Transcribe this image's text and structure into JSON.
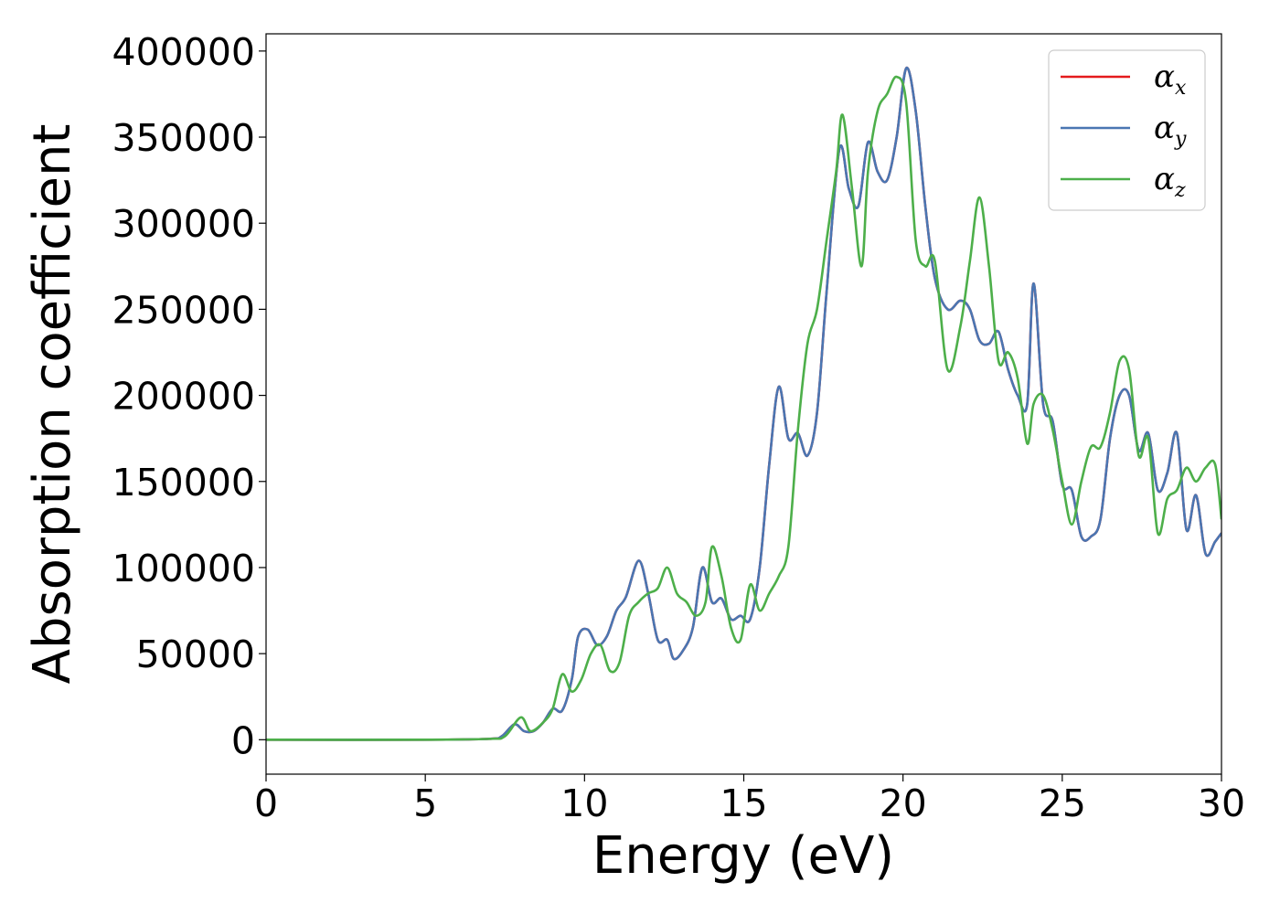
{
  "chart_data": {
    "type": "line",
    "xlabel": "Energy (eV)",
    "ylabel": "Absorption coefficient",
    "xlim": [
      0,
      30
    ],
    "ylim": [
      -20000,
      410000
    ],
    "xticks": [
      0,
      5,
      10,
      15,
      20,
      25,
      30
    ],
    "yticks": [
      0,
      50000,
      100000,
      150000,
      200000,
      250000,
      300000,
      350000,
      400000
    ],
    "grid": false,
    "legend_position": "top-right",
    "series": [
      {
        "name": "αx",
        "label_main": "α",
        "label_sub": "x",
        "color": "#e41a1c",
        "x": [
          0,
          5,
          7.0,
          7.4,
          7.8,
          8.1,
          8.4,
          8.7,
          9.0,
          9.3,
          9.6,
          9.8,
          10.1,
          10.4,
          10.7,
          11.0,
          11.3,
          11.7,
          12.0,
          12.3,
          12.6,
          12.8,
          13.1,
          13.4,
          13.7,
          14.0,
          14.3,
          14.6,
          14.9,
          15.2,
          15.5,
          15.8,
          16.1,
          16.4,
          16.7,
          17.0,
          17.3,
          17.6,
          18.0,
          18.3,
          18.6,
          18.9,
          19.2,
          19.5,
          19.8,
          20.1,
          20.4,
          20.7,
          21.0,
          21.4,
          21.8,
          22.1,
          22.4,
          22.7,
          23.0,
          23.3,
          23.6,
          23.9,
          24.1,
          24.4,
          24.7,
          25.0,
          25.3,
          25.6,
          25.9,
          26.2,
          26.5,
          26.8,
          27.1,
          27.4,
          27.7,
          28.0,
          28.3,
          28.6,
          28.9,
          29.2,
          29.5,
          29.8,
          30.0
        ],
        "y": [
          0,
          0,
          500,
          2000,
          9000,
          5000,
          5000,
          10000,
          18000,
          17000,
          35000,
          60000,
          64000,
          55000,
          60000,
          75000,
          83000,
          104000,
          85000,
          58000,
          58000,
          47000,
          52000,
          65000,
          100000,
          80000,
          82000,
          70000,
          72000,
          70000,
          100000,
          160000,
          205000,
          175000,
          178000,
          165000,
          190000,
          260000,
          343000,
          320000,
          310000,
          347000,
          330000,
          325000,
          350000,
          390000,
          365000,
          310000,
          268000,
          250000,
          255000,
          250000,
          232000,
          230000,
          237000,
          215000,
          200000,
          195000,
          265000,
          195000,
          185000,
          148000,
          145000,
          118000,
          118000,
          128000,
          175000,
          200000,
          200000,
          168000,
          178000,
          145000,
          155000,
          178000,
          122000,
          142000,
          108000,
          115000,
          120000
        ]
      },
      {
        "name": "αy",
        "label_main": "α",
        "label_sub": "y",
        "color": "#4a76b2",
        "x": [
          0,
          5,
          7.0,
          7.4,
          7.8,
          8.1,
          8.4,
          8.7,
          9.0,
          9.3,
          9.6,
          9.8,
          10.1,
          10.4,
          10.7,
          11.0,
          11.3,
          11.7,
          12.0,
          12.3,
          12.6,
          12.8,
          13.1,
          13.4,
          13.7,
          14.0,
          14.3,
          14.6,
          14.9,
          15.2,
          15.5,
          15.8,
          16.1,
          16.4,
          16.7,
          17.0,
          17.3,
          17.6,
          18.0,
          18.3,
          18.6,
          18.9,
          19.2,
          19.5,
          19.8,
          20.1,
          20.4,
          20.7,
          21.0,
          21.4,
          21.8,
          22.1,
          22.4,
          22.7,
          23.0,
          23.3,
          23.6,
          23.9,
          24.1,
          24.4,
          24.7,
          25.0,
          25.3,
          25.6,
          25.9,
          26.2,
          26.5,
          26.8,
          27.1,
          27.4,
          27.7,
          28.0,
          28.3,
          28.6,
          28.9,
          29.2,
          29.5,
          29.8,
          30.0
        ],
        "y": [
          0,
          0,
          500,
          2000,
          9000,
          5000,
          5000,
          10000,
          18000,
          17000,
          35000,
          60000,
          64000,
          55000,
          60000,
          75000,
          83000,
          104000,
          85000,
          58000,
          58000,
          47000,
          52000,
          65000,
          100000,
          80000,
          82000,
          70000,
          72000,
          70000,
          100000,
          160000,
          205000,
          175000,
          178000,
          165000,
          190000,
          260000,
          343000,
          320000,
          310000,
          347000,
          330000,
          325000,
          350000,
          390000,
          365000,
          310000,
          268000,
          250000,
          255000,
          250000,
          232000,
          230000,
          237000,
          215000,
          200000,
          195000,
          265000,
          195000,
          185000,
          148000,
          145000,
          118000,
          118000,
          128000,
          175000,
          200000,
          200000,
          168000,
          178000,
          145000,
          155000,
          178000,
          122000,
          142000,
          108000,
          115000,
          120000
        ]
      },
      {
        "name": "αz",
        "label_main": "α",
        "label_sub": "z",
        "color": "#4daf4a",
        "x": [
          0,
          5,
          7.0,
          7.5,
          8.0,
          8.3,
          8.7,
          9.0,
          9.3,
          9.6,
          9.9,
          10.2,
          10.5,
          10.8,
          11.1,
          11.4,
          11.7,
          12.0,
          12.3,
          12.6,
          12.9,
          13.2,
          13.5,
          13.8,
          14.0,
          14.3,
          14.6,
          14.9,
          15.2,
          15.5,
          15.8,
          16.1,
          16.4,
          16.7,
          17.0,
          17.3,
          17.6,
          17.9,
          18.1,
          18.4,
          18.7,
          18.9,
          19.2,
          19.5,
          19.8,
          20.1,
          20.4,
          20.7,
          21.0,
          21.4,
          21.8,
          22.1,
          22.4,
          22.7,
          23.0,
          23.3,
          23.6,
          23.9,
          24.1,
          24.4,
          24.7,
          25.0,
          25.3,
          25.6,
          25.9,
          26.2,
          26.5,
          26.8,
          27.1,
          27.4,
          27.7,
          28.0,
          28.3,
          28.6,
          28.9,
          29.2,
          29.5,
          29.8,
          30.0
        ],
        "y": [
          0,
          0,
          500,
          2000,
          13000,
          5000,
          10000,
          18000,
          38000,
          28000,
          35000,
          50000,
          55000,
          40000,
          45000,
          72000,
          80000,
          85000,
          88000,
          100000,
          85000,
          80000,
          72000,
          80000,
          112000,
          95000,
          65000,
          58000,
          90000,
          75000,
          85000,
          95000,
          112000,
          180000,
          230000,
          250000,
          290000,
          330000,
          363000,
          320000,
          275000,
          330000,
          365000,
          375000,
          385000,
          370000,
          290000,
          275000,
          278000,
          215000,
          240000,
          278000,
          315000,
          275000,
          220000,
          225000,
          210000,
          172000,
          195000,
          200000,
          180000,
          150000,
          125000,
          150000,
          170000,
          170000,
          190000,
          220000,
          215000,
          165000,
          175000,
          120000,
          140000,
          145000,
          158000,
          150000,
          158000,
          160000,
          128000
        ]
      }
    ]
  }
}
